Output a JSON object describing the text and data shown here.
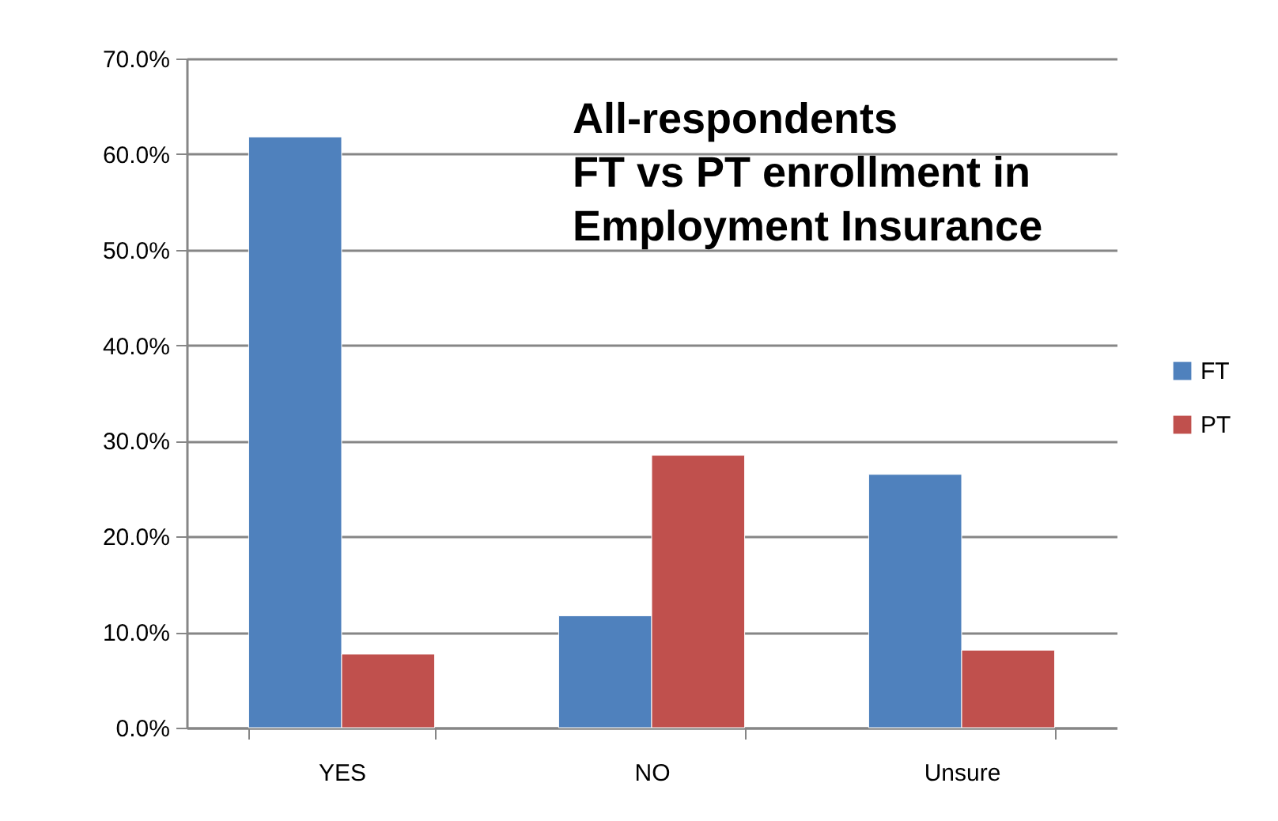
{
  "chart_data": {
    "type": "bar",
    "title": "All-respondents\nFT vs PT enrollment in\nEmployment Insurance",
    "categories": [
      "YES",
      "NO",
      "Unsure"
    ],
    "series": [
      {
        "name": "FT",
        "color": "#4f81bd",
        "values": [
          61.8,
          11.7,
          26.5
        ]
      },
      {
        "name": "PT",
        "color": "#c0504d",
        "values": [
          7.7,
          28.5,
          8.1
        ]
      }
    ],
    "ylim": [
      0,
      70
    ],
    "yticks": [
      {
        "value": 0,
        "label": "0.0%"
      },
      {
        "value": 10,
        "label": "10.0%"
      },
      {
        "value": 20,
        "label": "20.0%"
      },
      {
        "value": 30,
        "label": "30.0%"
      },
      {
        "value": 40,
        "label": "40.0%"
      },
      {
        "value": 50,
        "label": "50.0%"
      },
      {
        "value": 60,
        "label": "60.0%"
      },
      {
        "value": 70,
        "label": "70.0%"
      }
    ],
    "grid": "y",
    "legend": "right"
  }
}
